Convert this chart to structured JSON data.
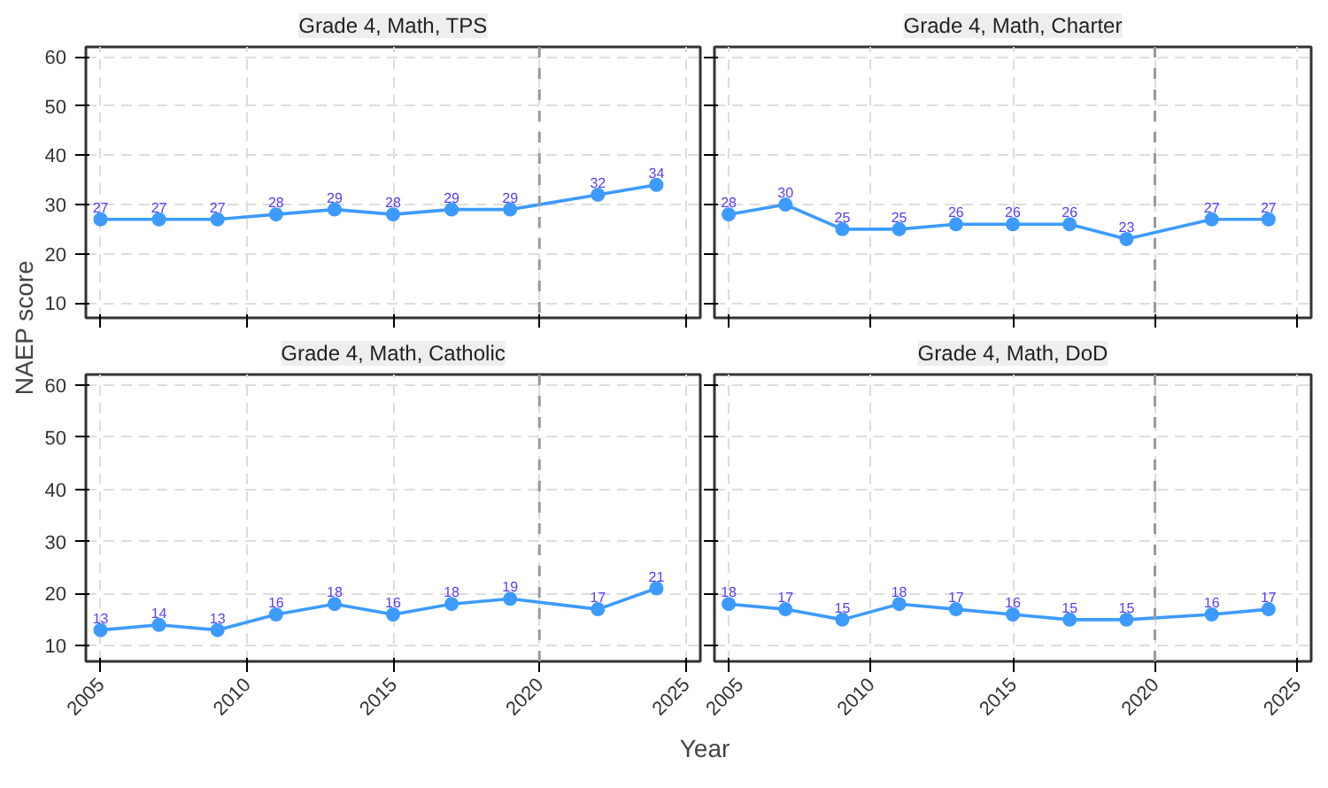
{
  "chart_data": [
    {
      "type": "line",
      "title": "Grade 4, Math, TPS",
      "ylabel": "NAEP score",
      "x": [
        2005,
        2007,
        2009,
        2011,
        2013,
        2015,
        2017,
        2019,
        2022,
        2024
      ],
      "series": [
        {
          "color": "#3d9bff",
          "values": [
            27,
            27,
            27,
            28,
            29,
            28,
            29,
            29,
            32,
            34
          ]
        }
      ],
      "xlim": [
        2004.5,
        2025.5
      ],
      "ylim": [
        7,
        62
      ],
      "xticks": [
        2005,
        2010,
        2015,
        2020,
        2025
      ],
      "yticks": [
        10,
        20,
        30,
        40,
        50,
        60
      ],
      "ref_lines": [
        {
          "axis": "x",
          "value": 2020,
          "color": "#999999",
          "line_style": "dashed"
        }
      ],
      "data_labels": true,
      "marker": "circle",
      "grid": true,
      "tick_labels": "y"
    },
    {
      "type": "line",
      "title": "Grade 4, Math, Charter",
      "x": [
        2005,
        2007,
        2009,
        2011,
        2013,
        2015,
        2017,
        2019,
        2022,
        2024
      ],
      "series": [
        {
          "color": "#3d9bff",
          "values": [
            28,
            30,
            25,
            25,
            26,
            26,
            26,
            23,
            27,
            27
          ]
        }
      ],
      "xlim": [
        2004.5,
        2025.5
      ],
      "ylim": [
        7,
        62
      ],
      "xticks": [
        2005,
        2010,
        2015,
        2020,
        2025
      ],
      "yticks": [
        10,
        20,
        30,
        40,
        50,
        60
      ],
      "ref_lines": [
        {
          "axis": "x",
          "value": 2020,
          "color": "#999999",
          "line_style": "dashed"
        }
      ],
      "data_labels": true,
      "marker": "circle",
      "grid": true,
      "tick_labels": false
    },
    {
      "type": "line",
      "title": "Grade 4, Math, Catholic",
      "xlabel": "Year",
      "x": [
        2005,
        2007,
        2009,
        2011,
        2013,
        2015,
        2017,
        2019,
        2022,
        2024
      ],
      "series": [
        {
          "color": "#3d9bff",
          "values": [
            13,
            14,
            13,
            16,
            18,
            16,
            18,
            19,
            17,
            21
          ]
        }
      ],
      "xlim": [
        2004.5,
        2025.5
      ],
      "ylim": [
        7,
        62
      ],
      "xticks": [
        2005,
        2010,
        2015,
        2020,
        2025
      ],
      "yticks": [
        10,
        20,
        30,
        40,
        50,
        60
      ],
      "ref_lines": [
        {
          "axis": "x",
          "value": 2020,
          "color": "#999999",
          "line_style": "dashed"
        }
      ],
      "data_labels": true,
      "marker": "circle",
      "grid": true
    },
    {
      "type": "line",
      "title": "Grade 4, Math, DoD",
      "x": [
        2005,
        2007,
        2009,
        2011,
        2013,
        2015,
        2017,
        2019,
        2022,
        2024
      ],
      "series": [
        {
          "color": "#3d9bff",
          "values": [
            18,
            17,
            15,
            18,
            17,
            16,
            15,
            15,
            16,
            17
          ]
        }
      ],
      "xlim": [
        2004.5,
        2025.5
      ],
      "ylim": [
        7,
        62
      ],
      "xticks": [
        2005,
        2010,
        2015,
        2020,
        2025
      ],
      "yticks": [
        10,
        20,
        30,
        40,
        50,
        60
      ],
      "ref_lines": [
        {
          "axis": "x",
          "value": 2020,
          "color": "#999999",
          "line_style": "dashed"
        }
      ],
      "data_labels": true,
      "marker": "circle",
      "grid": true,
      "tick_labels": "x"
    }
  ]
}
